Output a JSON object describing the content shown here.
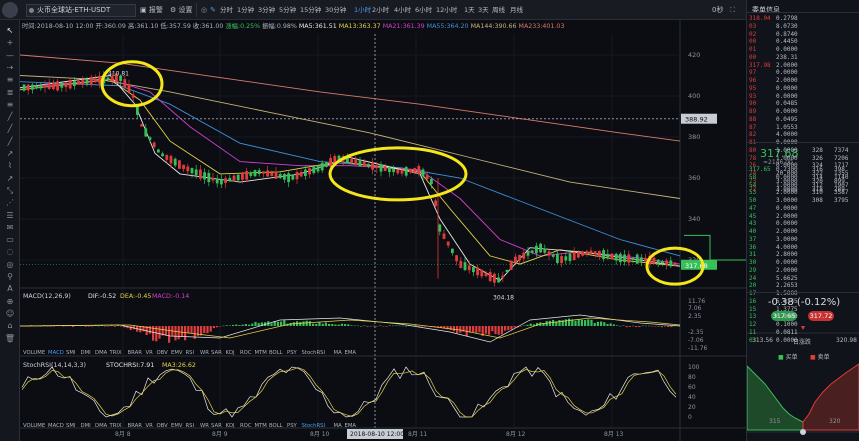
{
  "toolbar": {
    "symbol": "火币全球站-ETH-USDT",
    "alert_label": "报警",
    "settings_label": "设置",
    "timeframes": [
      "分时",
      "1分钟",
      "3分钟",
      "5分钟",
      "15分钟",
      "30分钟",
      "1小时",
      "2小时",
      "4小时",
      "6小时",
      "12小时",
      "1天",
      "3天",
      "周线",
      "月线"
    ],
    "active_timeframe": "1小时",
    "status_right": "0秒"
  },
  "infobar": {
    "time": "时间:2018-08-10 12:00",
    "open": "开:360.09",
    "high": "高:361.10",
    "low": "低:357.59",
    "close": "收:361.00",
    "change": "涨幅:0.25%",
    "amplitude": "振幅:0.98%",
    "ma5": "MA5:361.51",
    "ma13": "MA13:363.37",
    "ma21": "MA21:361.39",
    "ma55": "MA55:364.20",
    "ma144": "MA144:390.66",
    "ma233": "MA233:401.03"
  },
  "macd": {
    "label": "MACD(12,26,9)",
    "dif": "DIF:-0.52",
    "dea": "DEA:-0.45",
    "macd": "MACD:-0.14"
  },
  "stochrsi": {
    "label": "StochRSI(14,14,3,3)",
    "k": "STOCHRSI:7.91",
    "d": "MA3:26.62"
  },
  "indicator_tabs": [
    "VOLUME",
    "MACD",
    "SMI",
    "DMI",
    "DMA",
    "TRIX",
    "BRAR",
    "VR",
    "OBV",
    "EMV",
    "RSI",
    "WR",
    "SAR",
    "KDJ",
    "ROC",
    "MTM",
    "BOLL",
    "PSY",
    "StochRSI",
    "MA",
    "EMA"
  ],
  "main_axis_labels": [
    "420",
    "400",
    "380",
    "360",
    "340",
    "320"
  ],
  "crosshair_price": "388.92",
  "last_price_tag": "317.68",
  "high_marker": "410.81",
  "low_marker": "304.18",
  "macd_axis_labels": [
    "11.76",
    "7.06",
    "2.35",
    "-2.35",
    "-7.06",
    "-11.76"
  ],
  "stoch_axis_labels": [
    "100",
    "80",
    "60",
    "40",
    "20",
    "0"
  ],
  "date_labels": [
    "8月 8",
    "8月 9",
    "8月 10",
    "8月 11",
    "8月 12",
    "8月 13"
  ],
  "crosshair_time": "2018-08-10 12:00",
  "side_panel": {
    "title": "委单信息",
    "asks": [
      [
        "318.04",
        "0.2798",
        ""
      ],
      [
        "03",
        "8.0730",
        ""
      ],
      [
        "02",
        "0.8740",
        ""
      ],
      [
        "00",
        "0.4450",
        ""
      ],
      [
        "01",
        "0.0000",
        ""
      ],
      [
        "00",
        "238.31",
        ""
      ],
      [
        "317.98",
        "2.0000",
        ""
      ],
      [
        "97",
        "0.0000",
        ""
      ],
      [
        "96",
        "2.0000",
        ""
      ],
      [
        "95",
        "0.0000",
        ""
      ],
      [
        "93",
        "0.0000",
        ""
      ],
      [
        "90",
        "0.0485",
        ""
      ],
      [
        "89",
        "0.0000",
        ""
      ],
      [
        "88",
        "0.0495",
        ""
      ],
      [
        "87",
        "1.0553",
        ""
      ],
      [
        "82",
        "4.0000",
        ""
      ],
      [
        "81",
        "0.0000",
        ""
      ],
      [
        "80",
        "1.0000",
        "328"
      ],
      [
        "78",
        "1.0000",
        "326"
      ],
      [
        "76",
        "0.0000",
        "324"
      ],
      [
        "74",
        "20.000",
        "322"
      ],
      [
        "73",
        "3.0000",
        "320"
      ],
      [
        "72",
        "3.0000",
        "318"
      ]
    ],
    "asks_totals": [
      "7374",
      "7206",
      "1717",
      "1355",
      "899",
      "289"
    ],
    "last_price": "317.68",
    "last_price_sub": "≈2146.00",
    "bids": [
      [
        "317.65",
        "0.2300",
        "316"
      ],
      [
        "58",
        "0.0000",
        "314"
      ],
      [
        "54",
        "1.0000",
        "312"
      ],
      [
        "53",
        "2.0000",
        "310"
      ],
      [
        "50",
        "3.0000",
        "308"
      ],
      [
        "47",
        "0.0000",
        ""
      ],
      [
        "45",
        "2.0000",
        ""
      ],
      [
        "43",
        "0.0000",
        ""
      ],
      [
        "40",
        "2.0000",
        ""
      ],
      [
        "37",
        "3.0000",
        ""
      ],
      [
        "36",
        "4.0000",
        ""
      ],
      [
        "31",
        "2.8000",
        ""
      ],
      [
        "30",
        "0.0000",
        ""
      ],
      [
        "29",
        "2.0000",
        ""
      ],
      [
        "24",
        "5.6625",
        ""
      ],
      [
        "20",
        "2.2653",
        ""
      ],
      [
        "17",
        "1.5000",
        ""
      ],
      [
        "16",
        "5.0145",
        ""
      ],
      [
        "15",
        "1.3775",
        ""
      ],
      [
        "13",
        "0.0000",
        ""
      ],
      [
        "12",
        "0.1000",
        ""
      ],
      [
        "11",
        "0.0811",
        ""
      ],
      [
        "03",
        "0.0000",
        ""
      ]
    ],
    "bids_totals": [
      "398",
      "1140",
      "1907",
      "3587",
      "3795"
    ],
    "change": "-0.38 (-0.12%)",
    "bid_button": "317.65",
    "ask_button": "317.72",
    "depth_left": "313.56",
    "depth_center": "日涨跌",
    "depth_right": "320.98",
    "legend_buy": "买单",
    "legend_sell": "卖单",
    "depth_x_labels": [
      "315",
      "320"
    ]
  },
  "colors": {
    "up": "#37c05a",
    "down": "#e03c3c",
    "accent": "#4e9df6",
    "highlight_circle": "#f5e61a"
  }
}
